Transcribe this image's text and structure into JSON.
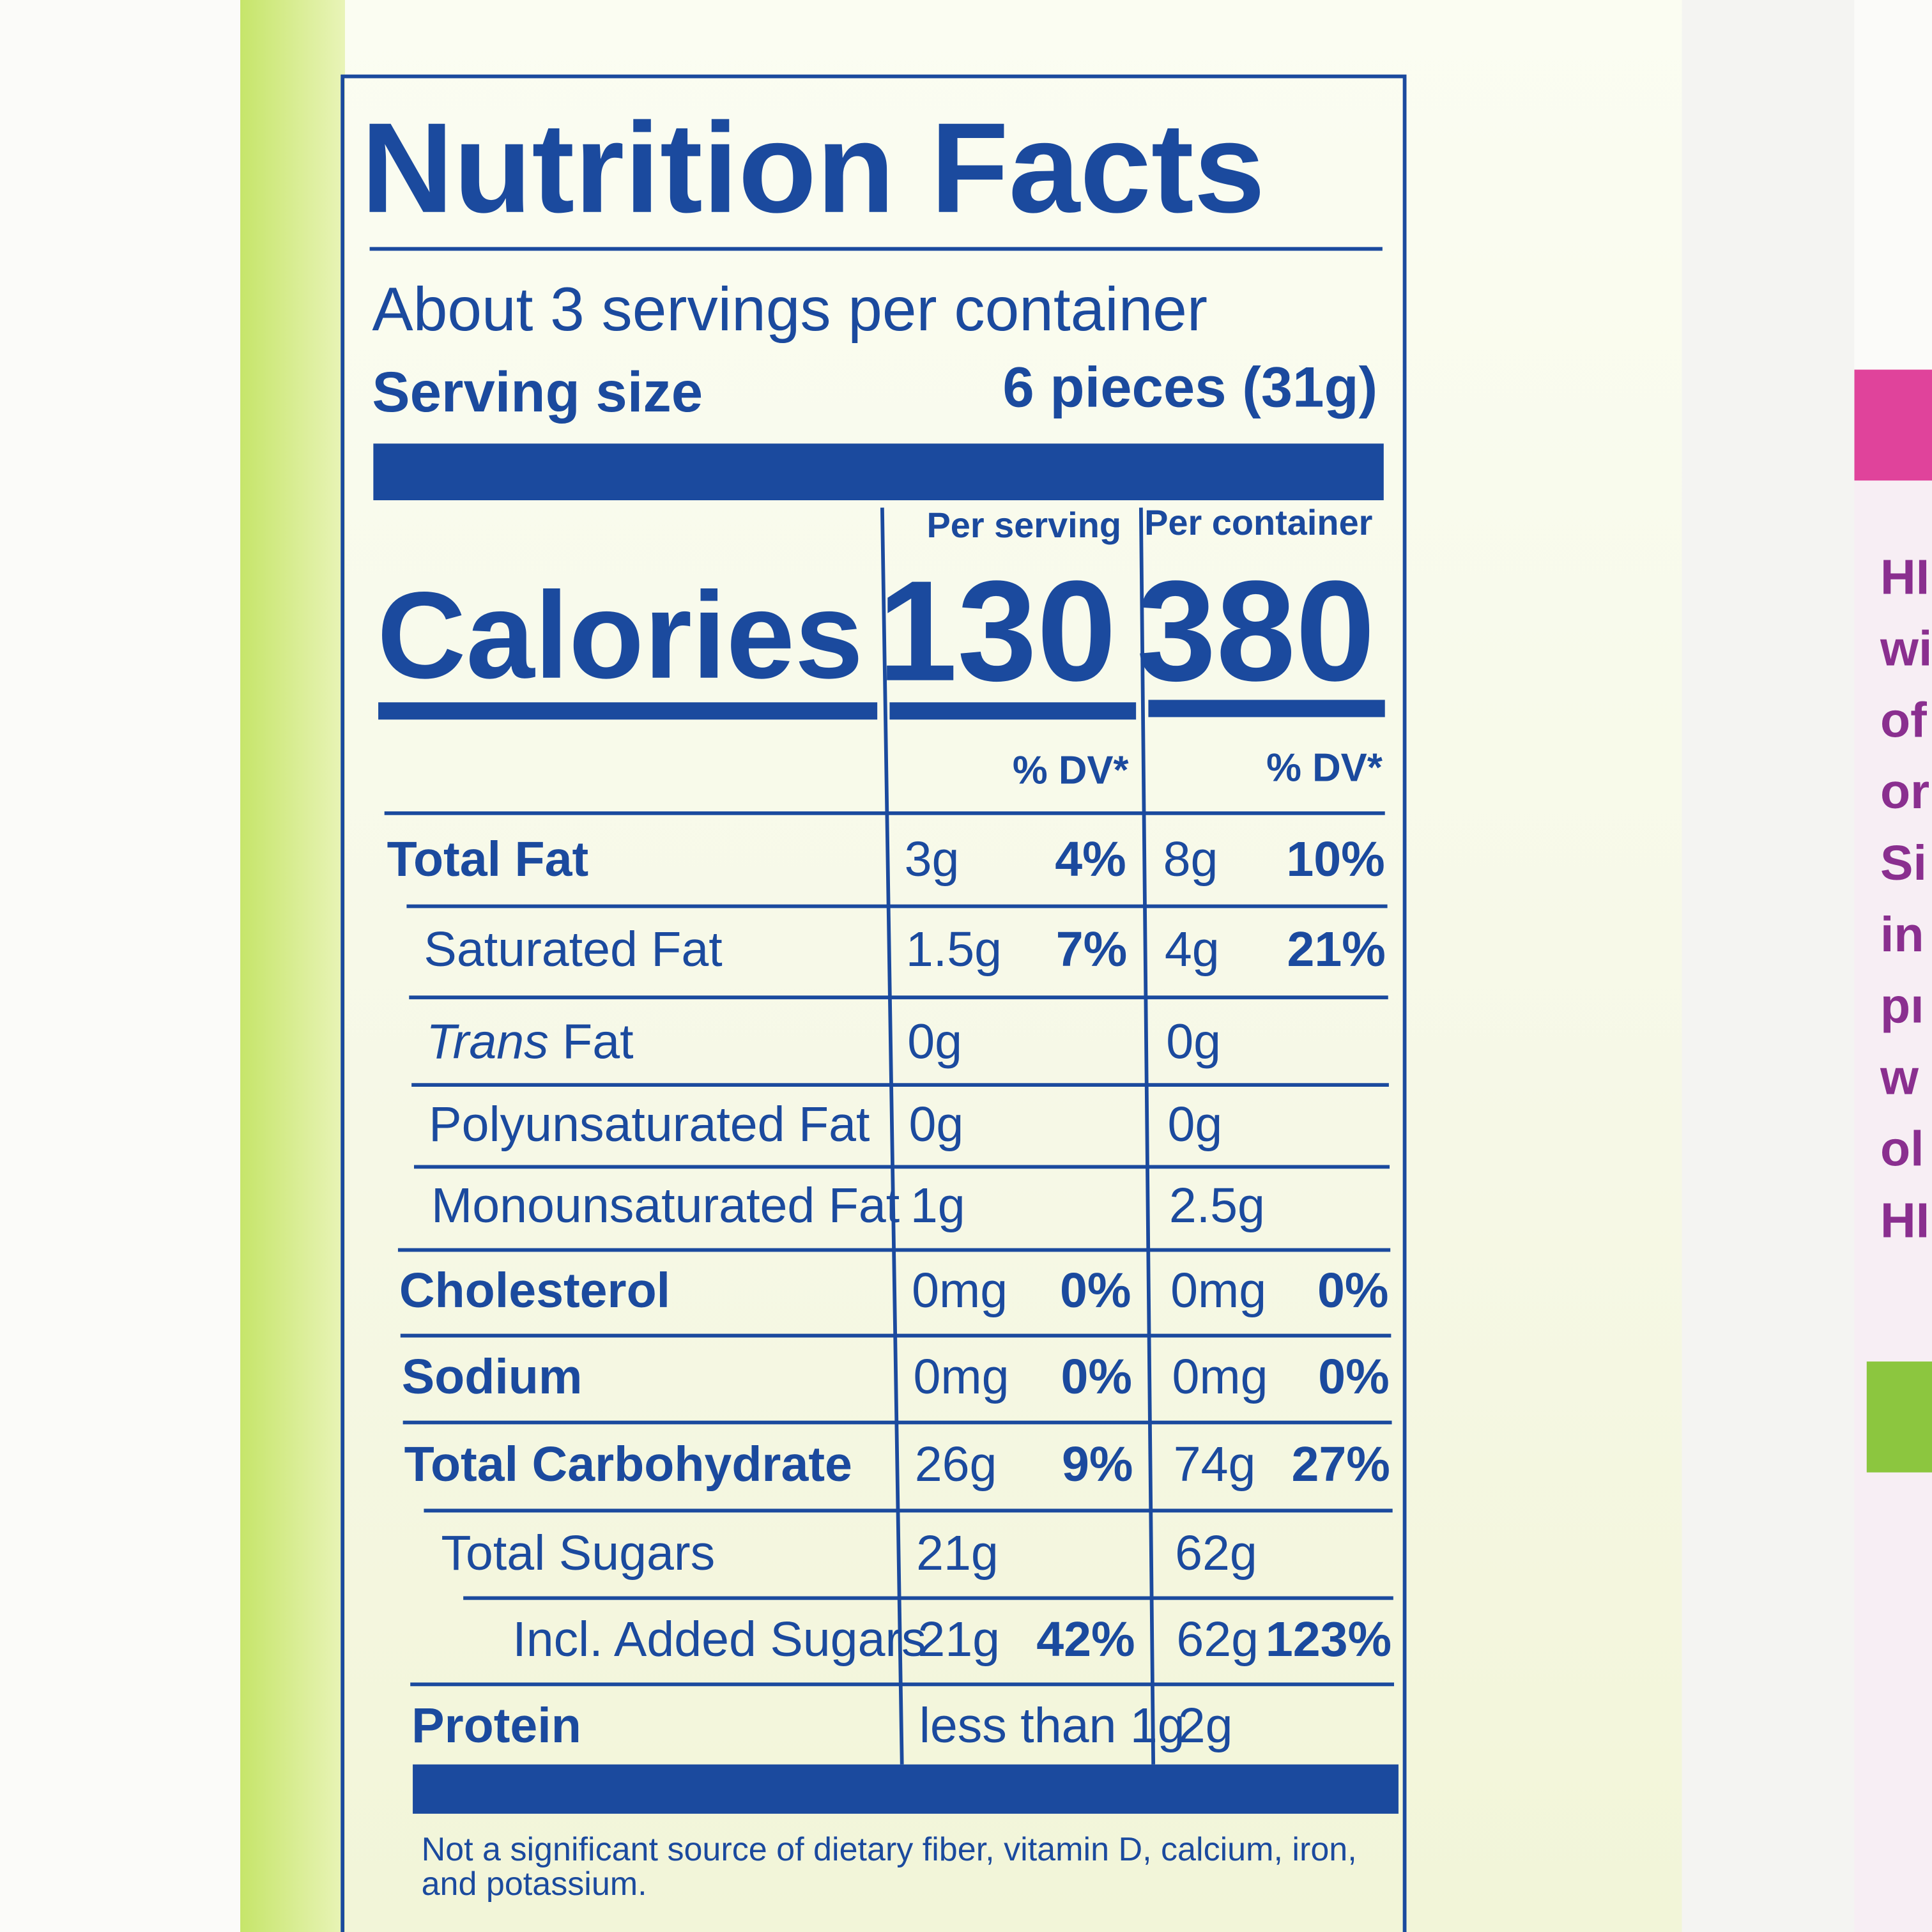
{
  "label": {
    "title": "Nutrition Facts",
    "servings_per_container": "About 3 servings per container",
    "serving_size_label": "Serving size",
    "serving_size_value": "6 pieces (31g)",
    "column_headers": [
      "Per serving",
      "Per container"
    ],
    "calories_label": "Calories",
    "calories": [
      130,
      380
    ],
    "dv_header": "% DV*",
    "rows": [
      {
        "name": "Total Fat",
        "serving": "3g",
        "serving_dv": "4%",
        "container": "8g",
        "container_dv": "10%"
      },
      {
        "name": "Saturated Fat",
        "serving": "1.5g",
        "serving_dv": "7%",
        "container": "4g",
        "container_dv": "21%"
      },
      {
        "name_italic": "Trans",
        "name": "Fat",
        "serving": "0g",
        "container": "0g"
      },
      {
        "name": "Polyunsaturated Fat",
        "serving": "0g",
        "container": "0g"
      },
      {
        "name": "Monounsaturated Fat",
        "serving": "1g",
        "container": "2.5g"
      },
      {
        "name": "Cholesterol",
        "serving": "0mg",
        "serving_dv": "0%",
        "container": "0mg",
        "container_dv": "0%"
      },
      {
        "name": "Sodium",
        "serving": "0mg",
        "serving_dv": "0%",
        "container": "0mg",
        "container_dv": "0%"
      },
      {
        "name": "Total Carbohydrate",
        "serving": "26g",
        "serving_dv": "9%",
        "container": "74g",
        "container_dv": "27%"
      },
      {
        "name": "Total Sugars",
        "serving": "21g",
        "container": "62g"
      },
      {
        "name": "Incl. Added Sugars",
        "serving": "21g",
        "serving_dv": "42%",
        "container": "62g",
        "container_dv": "123%"
      },
      {
        "name": "Protein",
        "serving": "less than 1g",
        "container": "2g"
      }
    ],
    "footnote": [
      "Not a significant source of dietary fiber, vitamin D, calcium, iron,",
      "and potassium."
    ]
  },
  "side_text": [
    "HI",
    "wi",
    "of",
    "or",
    "Si",
    "in",
    "pı",
    "w",
    "ol",
    "HI"
  ]
}
